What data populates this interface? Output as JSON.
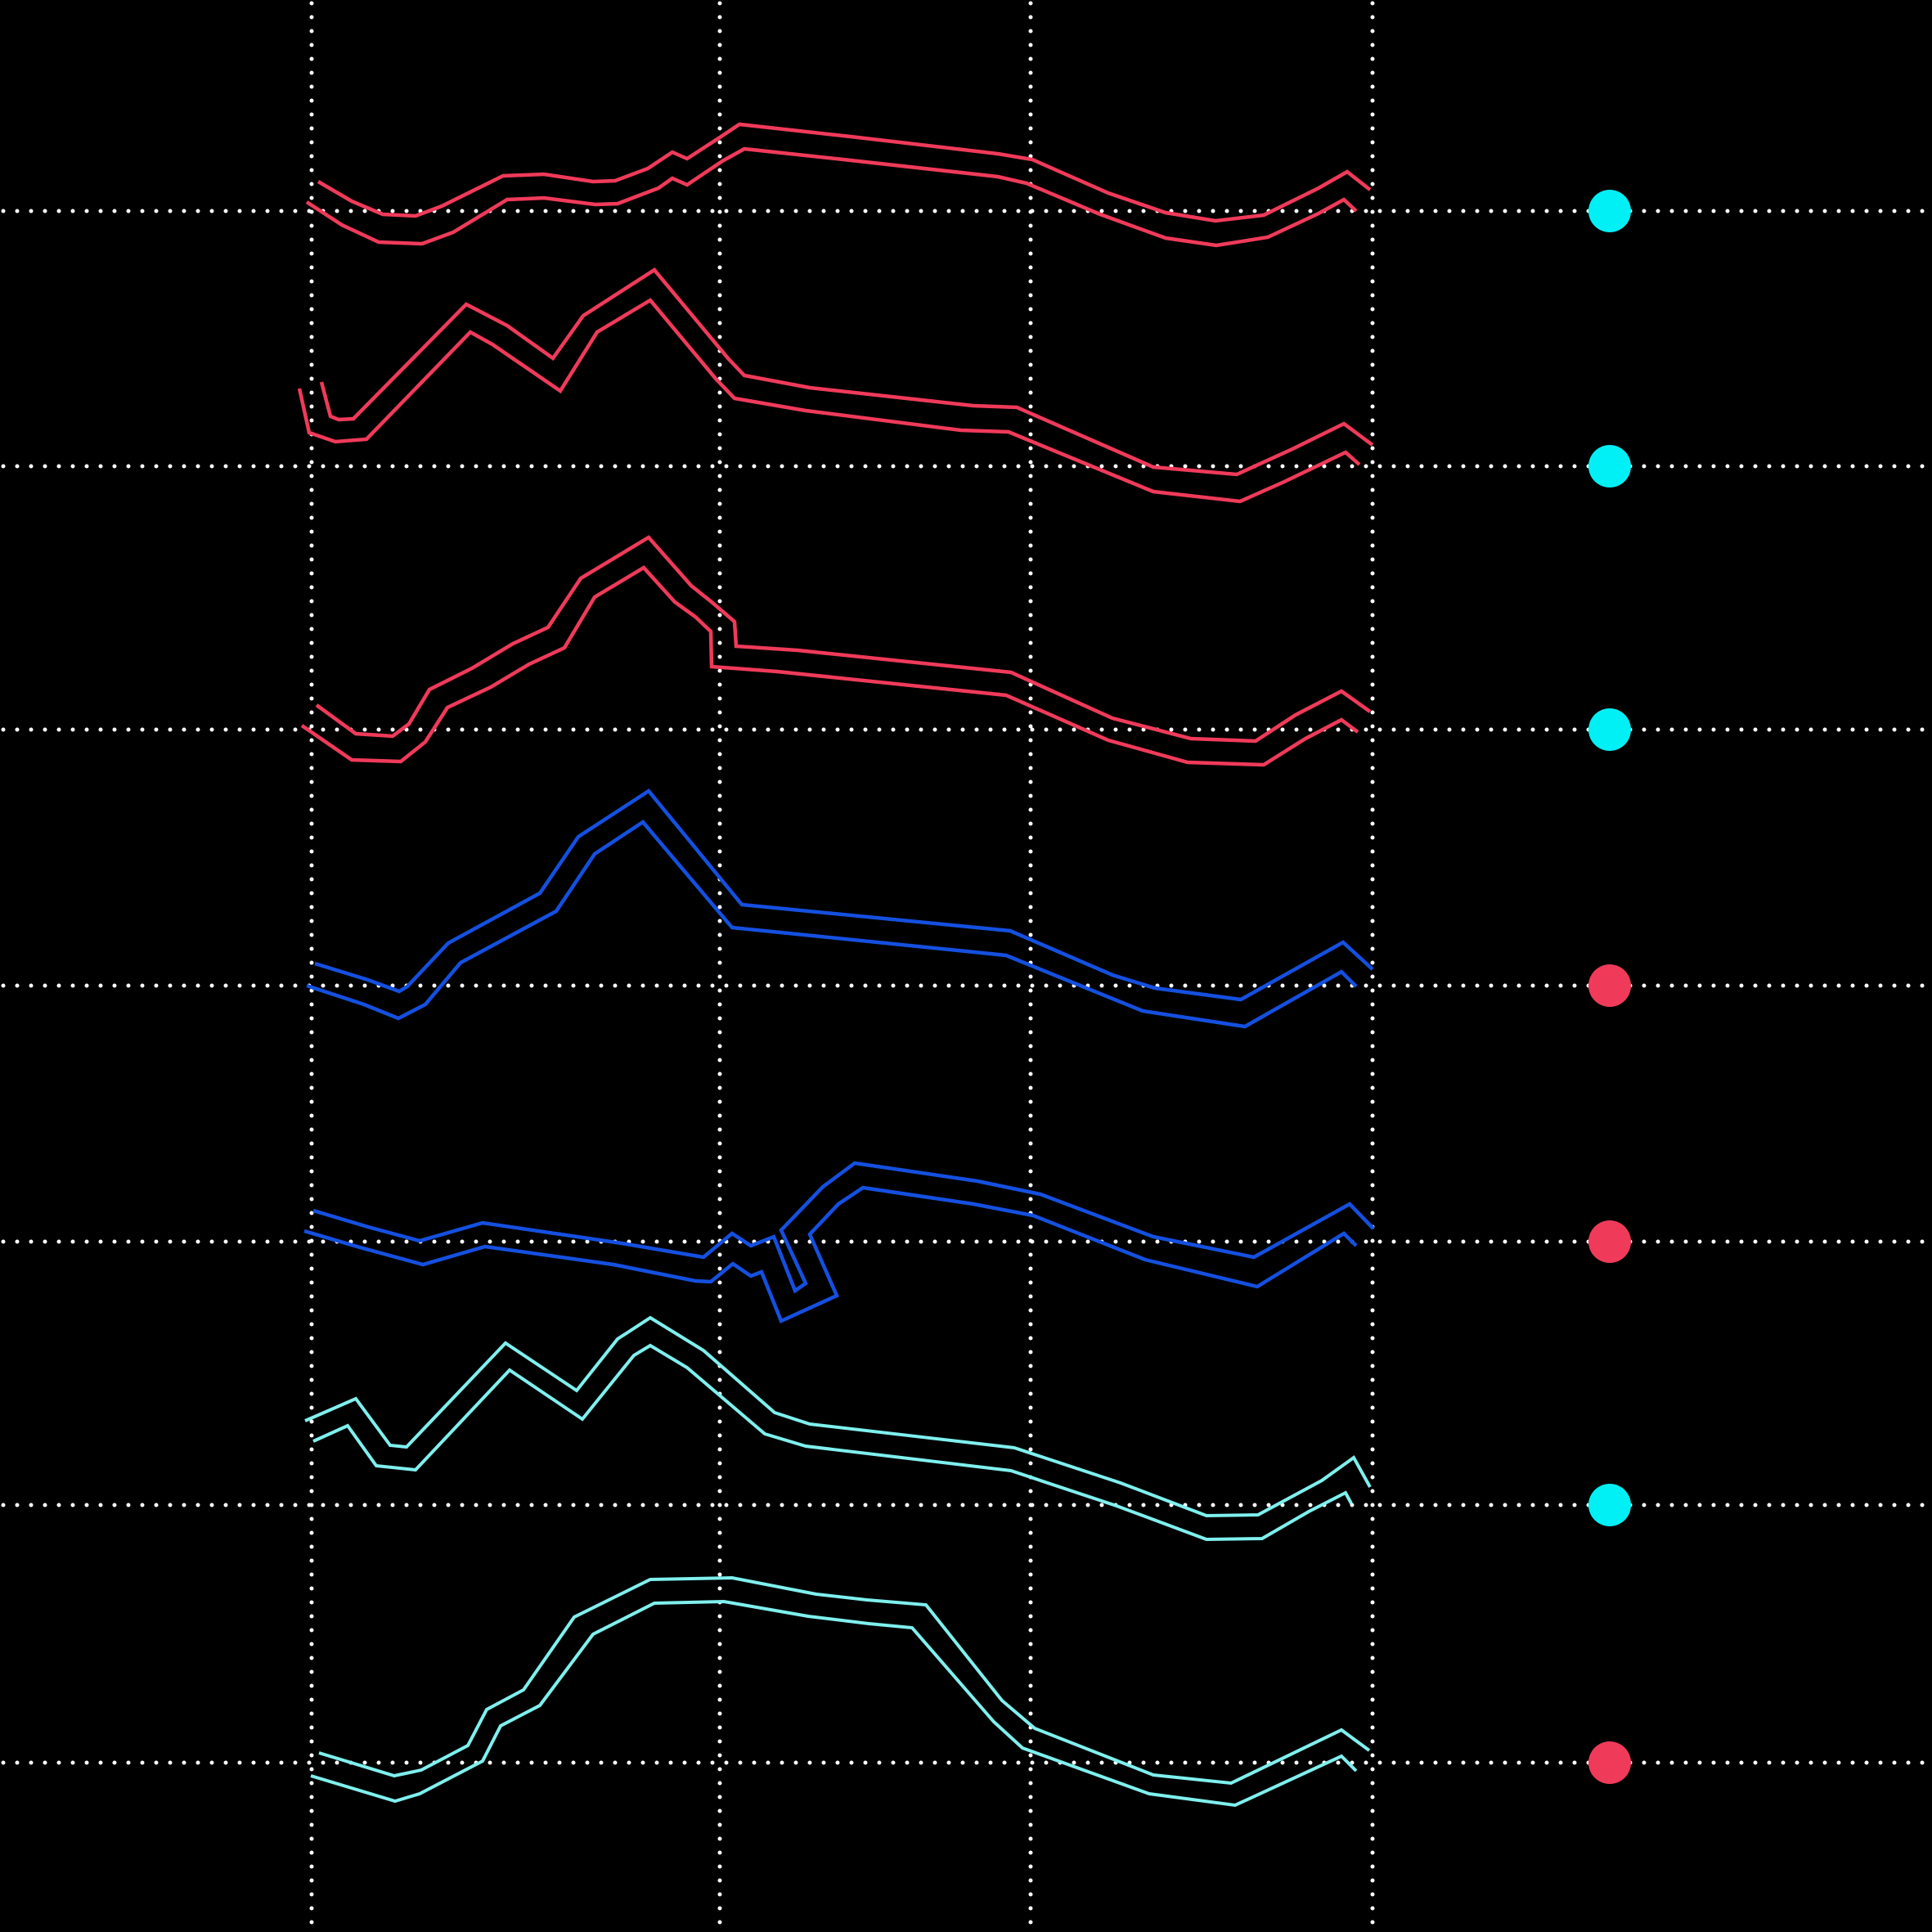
{
  "colors": {
    "background": "#000000",
    "grid": "#ffffff",
    "red": "#f03a5a",
    "blue": "#1450e0",
    "light-cyan": "#7ff0ee",
    "cyan": "#00f0f5"
  },
  "rows": [
    {
      "trace_color": "red",
      "marker_color": "cyan"
    },
    {
      "trace_color": "red",
      "marker_color": "cyan"
    },
    {
      "trace_color": "red",
      "marker_color": "cyan"
    },
    {
      "trace_color": "blue",
      "marker_color": "red"
    },
    {
      "trace_color": "blue",
      "marker_color": "red"
    },
    {
      "trace_color": "light-cyan",
      "marker_color": "cyan"
    },
    {
      "trace_color": "light-cyan",
      "marker_color": "red"
    }
  ]
}
